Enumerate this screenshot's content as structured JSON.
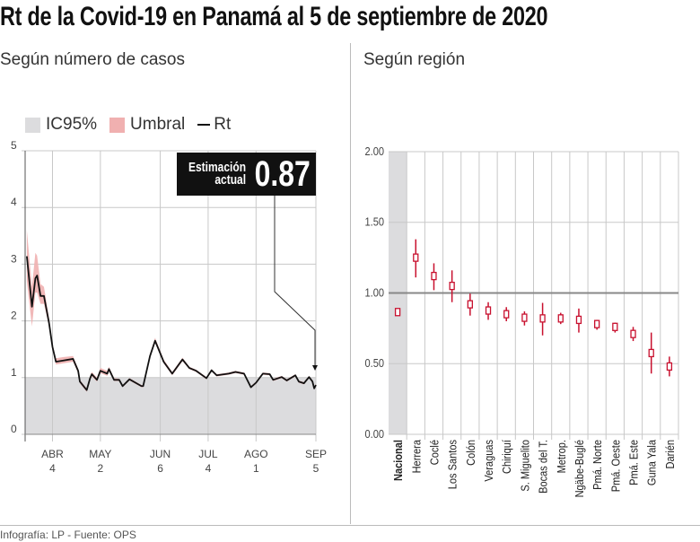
{
  "title": "Rt de la Covid-19 en Panamá al 5 de septiembre de 2020",
  "left_subtitle": "Según número de casos",
  "right_subtitle": "Según región",
  "footer": "Infografía: LP - Fuente: OPS",
  "legend": [
    {
      "label": "IC95%",
      "color": "#dcdcde"
    },
    {
      "label": "Umbral",
      "color": "#f0b0b0"
    },
    {
      "label": "Rt",
      "color": "#111111"
    }
  ],
  "annotation": {
    "label_line1": "Estimación",
    "label_line2": "actual",
    "value": "0.87"
  },
  "chart_data": [
    {
      "type": "line",
      "ylim": [
        0,
        5
      ],
      "yticks": [
        "0",
        "1",
        "2",
        "3",
        "4",
        "5"
      ],
      "xticks": [
        {
          "month": "ABR",
          "day": "4",
          "date": "2020-04-04"
        },
        {
          "month": "MAY",
          "day": "2",
          "date": "2020-05-02"
        },
        {
          "month": "JUN",
          "day": "6",
          "date": "2020-06-06"
        },
        {
          "month": "JUL",
          "day": "4",
          "date": "2020-07-04"
        },
        {
          "month": "AGO",
          "day": "1",
          "date": "2020-08-01"
        },
        {
          "month": "SEP",
          "day": "5",
          "date": "2020-09-05"
        }
      ],
      "xlim": [
        "2020-03-19",
        "2020-09-05"
      ],
      "shaded_below": 1,
      "grid": true,
      "series_fields": [
        "date",
        "rt",
        "lo",
        "hi"
      ],
      "points": [
        [
          "2020-03-20",
          3.14,
          2.7,
          3.6
        ],
        [
          "2020-03-23",
          2.25,
          1.9,
          2.6
        ],
        [
          "2020-03-25",
          2.75,
          2.5,
          3.2
        ],
        [
          "2020-03-26",
          2.8,
          2.5,
          3.15
        ],
        [
          "2020-03-28",
          2.44,
          2.3,
          2.65
        ],
        [
          "2020-03-30",
          2.44,
          2.3,
          2.6
        ],
        [
          "2020-04-02",
          1.96,
          1.9,
          2.05
        ],
        [
          "2020-04-04",
          1.54,
          1.49,
          1.59
        ],
        [
          "2020-04-06",
          1.28,
          1.23,
          1.34
        ],
        [
          "2020-04-10",
          1.3,
          1.25,
          1.36
        ],
        [
          "2020-04-16",
          1.33,
          1.28,
          1.38
        ],
        [
          "2020-04-19",
          1.12,
          1.08,
          1.16
        ],
        [
          "2020-04-20",
          0.93,
          0.9,
          0.96
        ],
        [
          "2020-04-24",
          0.78,
          0.75,
          0.81
        ],
        [
          "2020-04-26",
          0.99,
          0.96,
          1.03
        ],
        [
          "2020-04-27",
          1.06,
          1.02,
          1.1
        ],
        [
          "2020-04-30",
          0.96,
          0.93,
          1.0
        ],
        [
          "2020-05-02",
          1.12,
          1.08,
          1.17
        ],
        [
          "2020-05-06",
          1.07,
          1.03,
          1.12
        ],
        [
          "2020-05-07",
          1.15,
          1.11,
          1.19
        ],
        [
          "2020-05-10",
          0.96,
          0.94,
          0.99
        ],
        [
          "2020-05-13",
          0.96,
          0.94,
          0.98
        ],
        [
          "2020-05-15",
          0.85,
          0.83,
          0.87
        ],
        [
          "2020-05-19",
          0.97,
          0.95,
          0.99
        ],
        [
          "2020-05-26",
          0.85,
          0.83,
          0.87
        ],
        [
          "2020-05-27",
          0.85,
          0.83,
          0.87
        ],
        [
          "2020-05-31",
          1.38,
          1.35,
          1.42
        ],
        [
          "2020-06-03",
          1.65,
          1.61,
          1.7
        ],
        [
          "2020-06-08",
          1.28,
          1.25,
          1.32
        ],
        [
          "2020-06-13",
          1.07,
          1.04,
          1.1
        ],
        [
          "2020-06-19",
          1.32,
          1.29,
          1.35
        ],
        [
          "2020-06-23",
          1.17,
          1.15,
          1.19
        ],
        [
          "2020-06-27",
          1.12,
          1.1,
          1.14
        ],
        [
          "2020-07-03",
          0.99,
          0.97,
          1.01
        ],
        [
          "2020-07-06",
          1.13,
          1.11,
          1.15
        ],
        [
          "2020-07-09",
          1.04,
          1.02,
          1.06
        ],
        [
          "2020-07-16",
          1.07,
          1.05,
          1.09
        ],
        [
          "2020-07-20",
          1.1,
          1.08,
          1.12
        ],
        [
          "2020-07-25",
          1.07,
          1.05,
          1.09
        ],
        [
          "2020-07-29",
          0.83,
          0.81,
          0.85
        ],
        [
          "2020-08-01",
          0.91,
          0.89,
          0.93
        ],
        [
          "2020-08-05",
          1.07,
          1.05,
          1.09
        ],
        [
          "2020-08-09",
          1.06,
          1.04,
          1.08
        ],
        [
          "2020-08-11",
          0.96,
          0.94,
          0.98
        ],
        [
          "2020-08-16",
          1.01,
          0.99,
          1.03
        ],
        [
          "2020-08-19",
          0.95,
          0.93,
          0.97
        ],
        [
          "2020-08-24",
          1.04,
          1.02,
          1.06
        ],
        [
          "2020-08-26",
          0.93,
          0.91,
          0.95
        ],
        [
          "2020-08-29",
          0.9,
          0.88,
          0.92
        ],
        [
          "2020-09-01",
          1.01,
          0.99,
          1.03
        ],
        [
          "2020-09-03",
          0.93,
          0.91,
          0.95
        ],
        [
          "2020-09-04",
          0.81,
          0.79,
          0.83
        ],
        [
          "2020-09-05",
          0.87,
          0.85,
          0.89
        ]
      ]
    },
    {
      "type": "error-bar",
      "ylim": [
        0,
        2
      ],
      "yticks": [
        "0.00",
        "0.50",
        "1.00",
        "1.50",
        "2.00"
      ],
      "reference_line": 1.0,
      "marker_color": "#c8102e",
      "highlight_category": "Nacional",
      "categories": [
        "Nacional",
        "Herrera",
        "Coclé",
        "Los Santos",
        "Colón",
        "Veraguas",
        "Chiriquí",
        "S. Miguelito",
        "Bocas del T.",
        "Metrop.",
        "Ngäbe-Buglé",
        "Pmá. Norte",
        "Pmá. Oeste",
        "Pmá. Este",
        "Guna Yala",
        "Darién"
      ],
      "values": [
        0.865,
        1.25,
        1.12,
        1.05,
        0.92,
        0.876,
        0.85,
        0.825,
        0.82,
        0.82,
        0.81,
        0.78,
        0.76,
        0.71,
        0.575,
        0.48
      ],
      "lower": [
        0.85,
        1.11,
        1.02,
        0.935,
        0.84,
        0.81,
        0.8,
        0.77,
        0.7,
        0.78,
        0.72,
        0.74,
        0.72,
        0.66,
        0.43,
        0.41
      ],
      "upper": [
        0.88,
        1.38,
        1.21,
        1.16,
        0.995,
        0.935,
        0.9,
        0.87,
        0.93,
        0.86,
        0.89,
        0.81,
        0.79,
        0.76,
        0.72,
        0.55
      ]
    }
  ]
}
